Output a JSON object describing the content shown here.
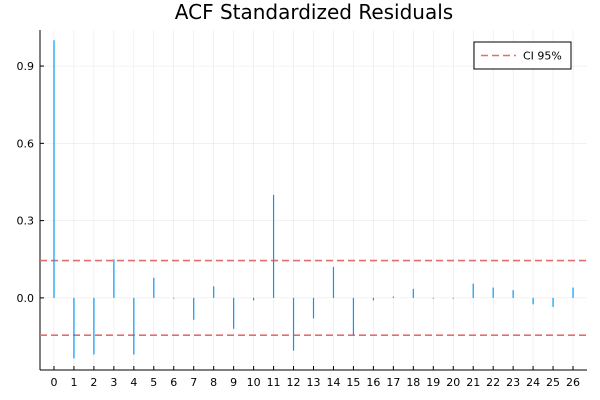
{
  "chart_data": {
    "type": "bar",
    "title": "ACF Standardized  Residuals",
    "xlabel": "",
    "ylabel": "",
    "x": [
      0,
      1,
      2,
      3,
      4,
      5,
      6,
      7,
      8,
      9,
      10,
      11,
      12,
      13,
      14,
      15,
      16,
      17,
      18,
      19,
      20,
      21,
      22,
      23,
      24,
      25,
      26
    ],
    "xlim": [
      -0.7,
      26.7
    ],
    "ylim": [
      -0.28,
      1.04
    ],
    "yticks": [
      0.0,
      0.3,
      0.6,
      0.9
    ],
    "ytick_labels": [
      "0.0",
      "0.3",
      "0.6",
      "0.9"
    ],
    "grid": true,
    "legend_position": "top-right",
    "series": [
      {
        "values": [
          1.0,
          -0.235,
          -0.22,
          0.15,
          -0.22,
          0.078,
          -0.003,
          -0.085,
          0.045,
          -0.12,
          -0.01,
          0.4,
          -0.205,
          -0.08,
          0.12,
          -0.145,
          -0.01,
          0.005,
          0.035,
          -0.003,
          -0.003,
          0.055,
          0.04,
          0.03,
          -0.025,
          -0.035,
          0.04
        ],
        "color": "#009af9"
      }
    ],
    "reference_lines": [
      {
        "name": "CI 95%",
        "values": [
          0.145,
          -0.145
        ],
        "color": "#e26f6f",
        "style": "dashed"
      }
    ]
  }
}
